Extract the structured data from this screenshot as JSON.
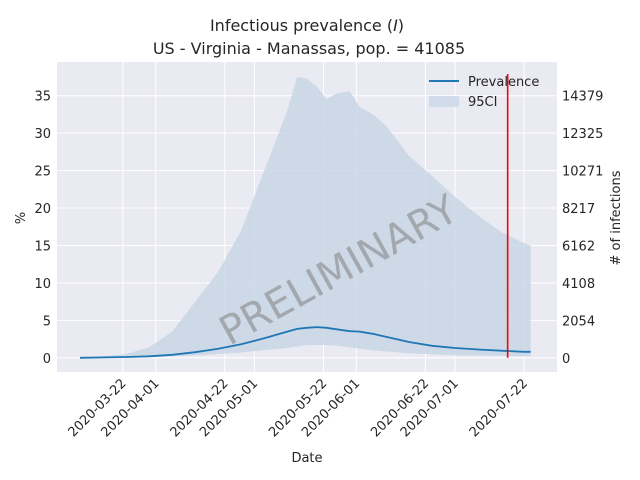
{
  "chart_data": {
    "type": "line",
    "title_line1_prefix": "Infectious prevalence (",
    "title_line1_symbol": "I",
    "title_line1_suffix": ")",
    "title_line2": "US - Virginia - Manassas, pop. = 41085",
    "xlabel": "Date",
    "ylabel": "%",
    "y2label": "# of infections",
    "watermark": "PRELIMINARY",
    "ylim": [
      -1.9,
      39.5
    ],
    "yticks": [
      0,
      5,
      10,
      15,
      20,
      25,
      30,
      35
    ],
    "y2ticks": [
      "0",
      "2054",
      "4108",
      "6162",
      "8217",
      "10271",
      "12325",
      "14379"
    ],
    "xlim": [
      "2020-03-02",
      "2020-08-01"
    ],
    "xticks": [
      "2020-03-22",
      "2020-04-01",
      "2020-04-22",
      "2020-05-01",
      "2020-05-22",
      "2020-06-01",
      "2020-06-22",
      "2020-07-01",
      "2020-07-22"
    ],
    "grid": true,
    "legend_position": "top-right",
    "legend": [
      "Prevalence",
      "95CI"
    ],
    "x": [
      "2020-03-09",
      "2020-03-16",
      "2020-03-23",
      "2020-03-30",
      "2020-04-06",
      "2020-04-13",
      "2020-04-20",
      "2020-04-27",
      "2020-05-04",
      "2020-05-11",
      "2020-05-14",
      "2020-05-17",
      "2020-05-20",
      "2020-05-23",
      "2020-05-26",
      "2020-05-30",
      "2020-06-02",
      "2020-06-06",
      "2020-06-10",
      "2020-06-17",
      "2020-06-24",
      "2020-07-01",
      "2020-07-08",
      "2020-07-15",
      "2020-07-22",
      "2020-07-24"
    ],
    "series": [
      {
        "name": "Prevalence",
        "color": "#1f77b4",
        "values": [
          0.0,
          0.05,
          0.1,
          0.2,
          0.4,
          0.75,
          1.2,
          1.8,
          2.6,
          3.5,
          3.85,
          4.0,
          4.1,
          4.0,
          3.8,
          3.55,
          3.5,
          3.2,
          2.8,
          2.1,
          1.6,
          1.3,
          1.1,
          0.95,
          0.8,
          0.8
        ]
      },
      {
        "name": "95CI",
        "color": "#c9d6e6",
        "lower": [
          0.0,
          0.02,
          0.05,
          0.1,
          0.18,
          0.3,
          0.5,
          0.7,
          1.0,
          1.3,
          1.5,
          1.7,
          1.7,
          1.7,
          1.6,
          1.4,
          1.2,
          1.0,
          0.85,
          0.6,
          0.45,
          0.35,
          0.3,
          0.25,
          0.2,
          0.2
        ],
        "upper": [
          0.0,
          0.2,
          0.5,
          1.4,
          3.5,
          7.5,
          11.5,
          17.0,
          25.0,
          33.0,
          37.5,
          37.3,
          36.2,
          34.5,
          35.3,
          35.6,
          33.5,
          32.5,
          31.0,
          27.0,
          24.3,
          21.5,
          19.0,
          16.8,
          15.3,
          15.0
        ]
      }
    ],
    "vline": {
      "x": "2020-07-17",
      "color": "#ff0000"
    }
  }
}
